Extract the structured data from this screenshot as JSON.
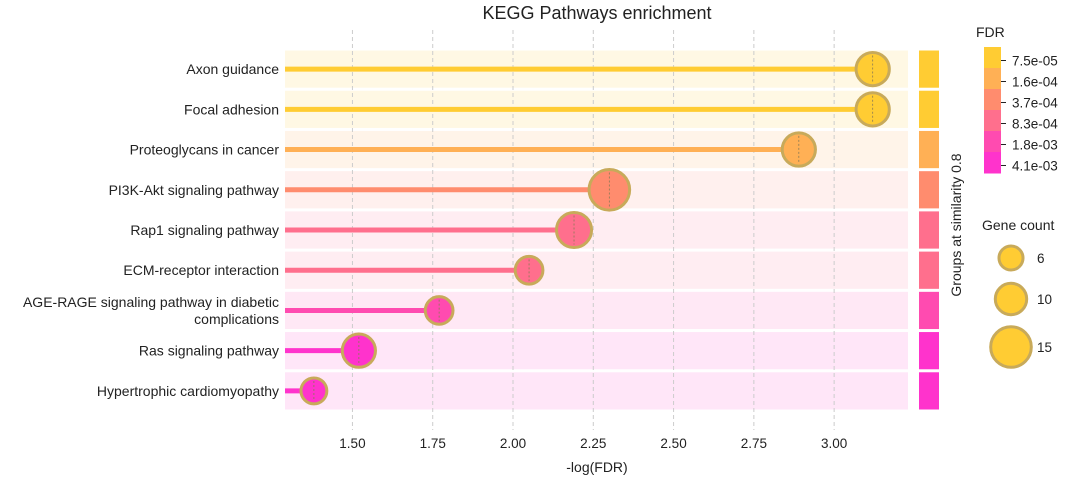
{
  "chart_data": {
    "type": "lollipop",
    "title": "KEGG Pathways enrichment",
    "xlabel": "-log(FDR)",
    "xlim": [
      1.29,
      3.23
    ],
    "xticks": [
      "1.50",
      "1.75",
      "2.00",
      "2.25",
      "2.50",
      "2.75",
      "3.00"
    ],
    "xtick_values": [
      1.5,
      1.75,
      2.0,
      2.25,
      2.5,
      2.75,
      3.0
    ],
    "grid": "vertical dashed",
    "group_axis_label": "Groups at similarity 0.8",
    "categories": [
      "Axon guidance",
      "Focal adhesion",
      "Proteoglycans in cancer",
      "PI3K-Akt signaling pathway",
      "Rap1 signaling pathway",
      "ECM-receptor interaction",
      "AGE-RAGE signaling pathway in diabetic complications",
      "Ras signaling pathway",
      "Hypertrophic cardiomyopathy"
    ],
    "category_lines": [
      [
        "Axon guidance"
      ],
      [
        "Focal adhesion"
      ],
      [
        "Proteoglycans in cancer"
      ],
      [
        "PI3K-Akt signaling pathway"
      ],
      [
        "Rap1 signaling pathway"
      ],
      [
        "ECM-receptor interaction"
      ],
      [
        "AGE-RAGE signaling pathway in diabetic",
        "complications"
      ],
      [
        "Ras signaling pathway"
      ],
      [
        "Hypertrophic cardiomyopathy"
      ]
    ],
    "values": [
      3.12,
      3.12,
      2.89,
      2.3,
      2.19,
      2.05,
      1.77,
      1.52,
      1.38
    ],
    "gene_counts": [
      11,
      11,
      11,
      15,
      12,
      8,
      8,
      11,
      7
    ],
    "colors": [
      "#ffcc33",
      "#ffcc33",
      "#ffb055",
      "#ff8c6e",
      "#ff6f8d",
      "#ff6f8d",
      "#ff4bb0",
      "#ff33cc",
      "#ff33cc"
    ],
    "group_colors": [
      "#ffcc33",
      "#ffcc33",
      "#ffb055",
      "#ff8c6e",
      "#ff6f8d",
      "#ff6f8d",
      "#ff4bb0",
      "#ff33cc",
      "#ff33cc"
    ],
    "band_colors": [
      "#fff8e4",
      "#fff8e4",
      "#fff4e9",
      "#fff0ee",
      "#ffedf2",
      "#ffedf2",
      "#ffe8f5",
      "#ffe6f8",
      "#ffe6f8"
    ],
    "fdr_legend": {
      "title": "FDR",
      "labels": [
        "7.5e-05",
        "1.6e-04",
        "3.7e-04",
        "8.3e-04",
        "1.8e-03",
        "4.1e-03"
      ],
      "colors": [
        "#ffcc33",
        "#ffb055",
        "#ff8c6e",
        "#ff6f8d",
        "#ff4bb0",
        "#ff33cc"
      ]
    },
    "size_legend": {
      "title": "Gene count",
      "counts": [
        6,
        10,
        15
      ],
      "labels": [
        "6",
        "10",
        "15"
      ],
      "color": "#ffcc33"
    },
    "marker_edge_color": "#c8aa5a",
    "grid_color": "#cccccc"
  }
}
